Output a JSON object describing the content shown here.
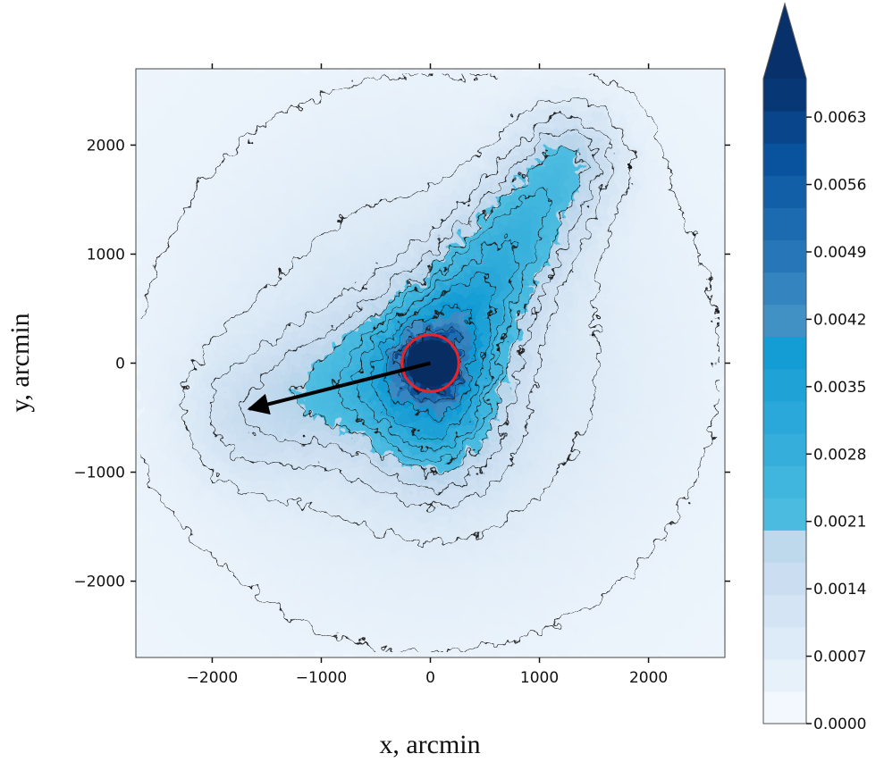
{
  "chart_data": {
    "type": "heatmap",
    "title": "",
    "xlabel": "x, arcmin",
    "ylabel": "y, arcmin",
    "xlim": [
      -2700,
      2700
    ],
    "ylim": [
      -2700,
      2700
    ],
    "xticks": [
      -2000,
      -1000,
      0,
      1000,
      2000
    ],
    "yticks": [
      -2000,
      -1000,
      0,
      1000,
      2000
    ],
    "xtick_labels": [
      "−2000",
      "−1000",
      "0",
      "1000",
      "2000"
    ],
    "ytick_labels": [
      "−2000",
      "−1000",
      "0",
      "1000",
      "2000"
    ],
    "grid": false,
    "colormap": "Blues",
    "colorbar": {
      "min": 0.0,
      "max": 0.0067,
      "extend": "max",
      "levels": 20,
      "ticks": [
        0.0,
        0.0007,
        0.0014,
        0.0021,
        0.0028,
        0.0035,
        0.0042,
        0.0049,
        0.0056,
        0.0063
      ],
      "tick_labels": [
        "0.0000",
        "0.0007",
        "0.0014",
        "0.0021",
        "0.0028",
        "0.0035",
        "0.0042",
        "0.0049",
        "0.0056",
        "0.0063"
      ],
      "low_color": "#f7fbff",
      "high_color": "#08306b"
    },
    "density_structure": {
      "core": {
        "x": 0,
        "y": 0,
        "value": 0.0065
      },
      "ridge_arm": {
        "from": [
          0,
          0
        ],
        "to": [
          1250,
          1850
        ],
        "peak_value": 0.0025
      },
      "diffuse_arm": {
        "from": [
          0,
          0
        ],
        "to": [
          -1600,
          -450
        ],
        "peak_value": 0.0016
      },
      "southern_lobe": {
        "x": 50,
        "y": -650,
        "value": 0.002
      },
      "background_value": 0.0003
    },
    "annotations": {
      "circle": {
        "center": [
          0,
          0
        ],
        "radius": 260,
        "color": "#e8242a"
      },
      "arrow": {
        "from": [
          0,
          0
        ],
        "to": [
          -1660,
          -420
        ],
        "color": "#000000"
      }
    }
  }
}
